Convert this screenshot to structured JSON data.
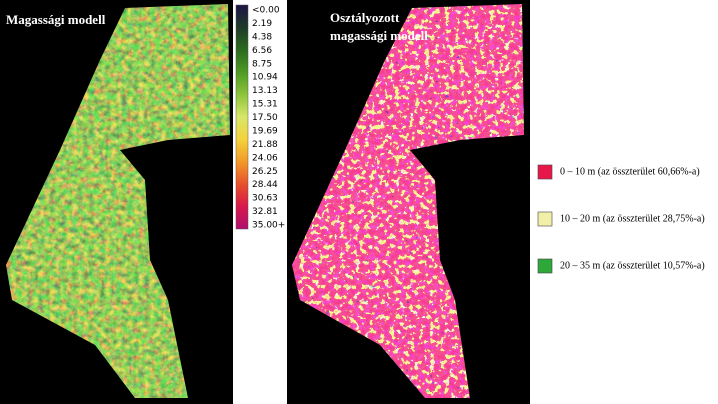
{
  "left_panel": {
    "title": "Magassági modell"
  },
  "color_scale": {
    "labels": [
      "<0.00",
      "2.19",
      "4.38",
      "6.56",
      "8.75",
      "10.94",
      "13.13",
      "15.31",
      "17.50",
      "19.69",
      "21.88",
      "24.06",
      "26.25",
      "28.44",
      "30.63",
      "32.81",
      "35.00+"
    ],
    "colors": [
      "#1c1446",
      "#1f3a2a",
      "#2b6a1f",
      "#4e9a24",
      "#8cc43a",
      "#d8e66a",
      "#f4d23c",
      "#f29a2a",
      "#e8502a",
      "#d8184a",
      "#b01070"
    ]
  },
  "right_panel": {
    "title": [
      "Osztályozott",
      "magassági modell"
    ]
  },
  "legend": {
    "items": [
      {
        "label": "0 – 10 m (az összterület 60,66%-a)",
        "color": "#e8174a"
      },
      {
        "label": "10 – 20 m (az összterület 28,75%-a)",
        "color": "#f2f0a8"
      },
      {
        "label": "20 – 35 m (az összterület 10,57%-a)",
        "color": "#2fa83a"
      }
    ]
  }
}
